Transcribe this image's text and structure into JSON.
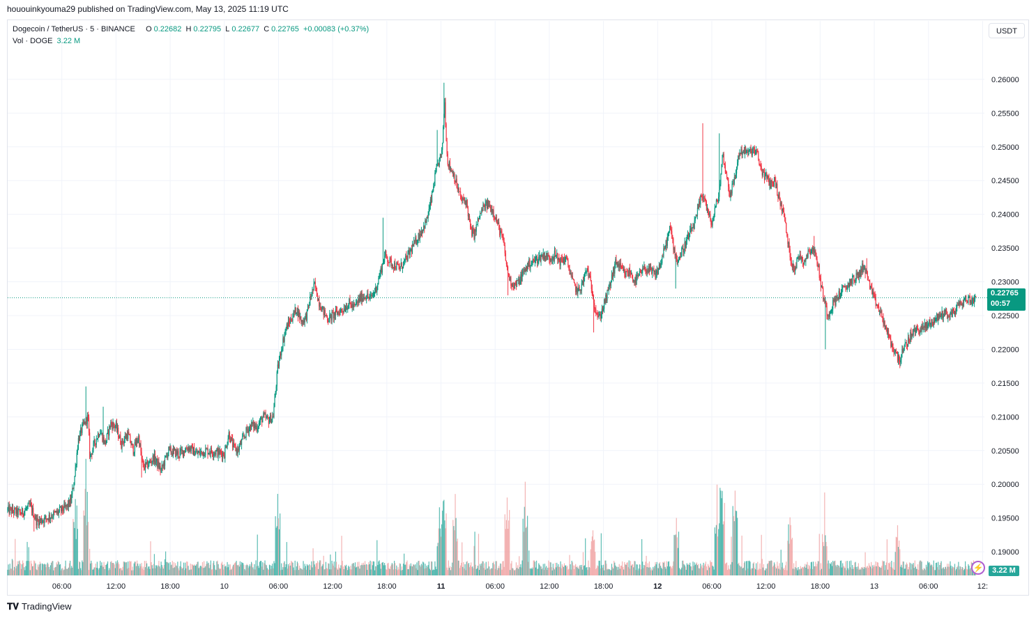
{
  "header": {
    "published_by": "hououinkyouma29 published on TradingView.com, May 13, 2025 11:19 UTC"
  },
  "legend": {
    "symbol": "Dogecoin / TetherUS · 5 · BINANCE",
    "o_label": "O",
    "o_value": "0.22682",
    "h_label": "H",
    "h_value": "0.22795",
    "l_label": "L",
    "l_value": "0.22677",
    "c_label": "C",
    "c_value": "0.22765",
    "change": "+0.00083 (+0.37%)",
    "vol_label": "Vol · DOGE",
    "vol_value": "3.22 M"
  },
  "currency_button": "USDT",
  "last_price_tag": {
    "price": "0.22765",
    "countdown": "00:57"
  },
  "volume_tag": "3.22 M",
  "footer_logo": "TradingView",
  "colors": {
    "up": "#089981",
    "down": "#f23645",
    "vol_up": "#26a69a",
    "vol_down": "#ef9a9a",
    "grid": "#f0f3fa"
  },
  "chart_data": {
    "type": "candlestick",
    "y_axis_ticks": [
      "0.26000",
      "0.25500",
      "0.25000",
      "0.24500",
      "0.24000",
      "0.23500",
      "0.23000",
      "0.22500",
      "0.22000",
      "0.21500",
      "0.21000",
      "0.20500",
      "0.20000",
      "0.19500",
      "0.19000"
    ],
    "ylim": [
      0.1865,
      0.2635
    ],
    "x_axis_ticks": [
      {
        "label": "06:00",
        "t": 6
      },
      {
        "label": "12:00",
        "t": 12
      },
      {
        "label": "18:00",
        "t": 18
      },
      {
        "label": "10",
        "t": 24,
        "bold": false
      },
      {
        "label": "06:00",
        "t": 30
      },
      {
        "label": "12:00",
        "t": 36
      },
      {
        "label": "18:00",
        "t": 42
      },
      {
        "label": "11",
        "t": 48,
        "bold": true
      },
      {
        "label": "06:00",
        "t": 54
      },
      {
        "label": "12:00",
        "t": 60
      },
      {
        "label": "18:00",
        "t": 66
      },
      {
        "label": "12",
        "t": 72,
        "bold": true
      },
      {
        "label": "06:00",
        "t": 78
      },
      {
        "label": "12:00",
        "t": 84
      },
      {
        "label": "18:00",
        "t": 90
      },
      {
        "label": "13",
        "t": 96,
        "bold": false
      },
      {
        "label": "06:00",
        "t": 102
      },
      {
        "label": "12:",
        "t": 108
      }
    ],
    "xlim_hours": [
      0.0,
      108.2
    ],
    "price_path": [
      [
        0.0,
        0.1962
      ],
      [
        1.5,
        0.1957
      ],
      [
        2.5,
        0.1968
      ],
      [
        3.2,
        0.1945
      ],
      [
        4.0,
        0.1948
      ],
      [
        5.5,
        0.1958
      ],
      [
        6.5,
        0.1966
      ],
      [
        7.0,
        0.1975
      ],
      [
        7.4,
        0.201
      ],
      [
        7.8,
        0.2065
      ],
      [
        8.3,
        0.2085
      ],
      [
        8.9,
        0.21
      ],
      [
        9.1,
        0.204
      ],
      [
        9.6,
        0.206
      ],
      [
        10.2,
        0.208
      ],
      [
        10.8,
        0.206
      ],
      [
        11.4,
        0.209
      ],
      [
        12.0,
        0.2085
      ],
      [
        12.6,
        0.206
      ],
      [
        13.3,
        0.2075
      ],
      [
        13.9,
        0.205
      ],
      [
        14.5,
        0.207
      ],
      [
        15.0,
        0.2025
      ],
      [
        15.6,
        0.203
      ],
      [
        16.2,
        0.204
      ],
      [
        17.0,
        0.202
      ],
      [
        17.8,
        0.205
      ],
      [
        19.0,
        0.2045
      ],
      [
        20.0,
        0.2055
      ],
      [
        21.0,
        0.2045
      ],
      [
        22.0,
        0.205
      ],
      [
        23.0,
        0.2048
      ],
      [
        24.0,
        0.2045
      ],
      [
        24.5,
        0.2075
      ],
      [
        25.0,
        0.2055
      ],
      [
        25.5,
        0.205
      ],
      [
        26.0,
        0.2065
      ],
      [
        26.5,
        0.208
      ],
      [
        27.0,
        0.2088
      ],
      [
        27.6,
        0.2085
      ],
      [
        28.3,
        0.21
      ],
      [
        28.9,
        0.2095
      ],
      [
        29.4,
        0.21
      ],
      [
        29.9,
        0.217
      ],
      [
        30.3,
        0.22
      ],
      [
        30.8,
        0.223
      ],
      [
        31.4,
        0.2245
      ],
      [
        32.0,
        0.226
      ],
      [
        32.6,
        0.224
      ],
      [
        33.1,
        0.225
      ],
      [
        33.6,
        0.228
      ],
      [
        34.0,
        0.2295
      ],
      [
        34.5,
        0.227
      ],
      [
        35.0,
        0.2255
      ],
      [
        35.5,
        0.2245
      ],
      [
        36.0,
        0.225
      ],
      [
        36.6,
        0.2255
      ],
      [
        37.2,
        0.226
      ],
      [
        37.8,
        0.2268
      ],
      [
        38.4,
        0.2262
      ],
      [
        39.0,
        0.2275
      ],
      [
        39.6,
        0.228
      ],
      [
        40.2,
        0.2275
      ],
      [
        40.8,
        0.229
      ],
      [
        41.4,
        0.232
      ],
      [
        41.8,
        0.234
      ],
      [
        42.3,
        0.233
      ],
      [
        42.8,
        0.2325
      ],
      [
        43.4,
        0.232
      ],
      [
        44.0,
        0.233
      ],
      [
        44.6,
        0.2345
      ],
      [
        45.2,
        0.236
      ],
      [
        45.8,
        0.2375
      ],
      [
        46.4,
        0.239
      ],
      [
        46.9,
        0.242
      ],
      [
        47.4,
        0.246
      ],
      [
        47.8,
        0.248
      ],
      [
        48.1,
        0.249
      ],
      [
        48.4,
        0.257
      ],
      [
        48.7,
        0.248
      ],
      [
        49.0,
        0.247
      ],
      [
        49.4,
        0.246
      ],
      [
        49.8,
        0.244
      ],
      [
        50.3,
        0.242
      ],
      [
        50.8,
        0.242
      ],
      [
        51.3,
        0.2375
      ],
      [
        51.7,
        0.237
      ],
      [
        52.2,
        0.2395
      ],
      [
        52.7,
        0.241
      ],
      [
        53.2,
        0.2415
      ],
      [
        53.8,
        0.2405
      ],
      [
        54.4,
        0.238
      ],
      [
        54.9,
        0.236
      ],
      [
        55.3,
        0.232
      ],
      [
        55.7,
        0.23
      ],
      [
        56.2,
        0.2295
      ],
      [
        56.6,
        0.23
      ],
      [
        57.0,
        0.231
      ],
      [
        57.6,
        0.2325
      ],
      [
        58.2,
        0.233
      ],
      [
        58.8,
        0.2335
      ],
      [
        59.4,
        0.234
      ],
      [
        60.0,
        0.2335
      ],
      [
        60.6,
        0.234
      ],
      [
        61.2,
        0.233
      ],
      [
        61.8,
        0.2335
      ],
      [
        62.2,
        0.232
      ],
      [
        62.7,
        0.2295
      ],
      [
        63.2,
        0.2285
      ],
      [
        63.6,
        0.2295
      ],
      [
        64.2,
        0.232
      ],
      [
        64.7,
        0.229
      ],
      [
        65.1,
        0.226
      ],
      [
        65.5,
        0.2245
      ],
      [
        65.9,
        0.226
      ],
      [
        66.4,
        0.228
      ],
      [
        66.9,
        0.2305
      ],
      [
        67.4,
        0.233
      ],
      [
        67.9,
        0.232
      ],
      [
        68.4,
        0.231
      ],
      [
        68.9,
        0.2315
      ],
      [
        69.5,
        0.23
      ],
      [
        70.0,
        0.231
      ],
      [
        70.6,
        0.232
      ],
      [
        71.2,
        0.2315
      ],
      [
        71.8,
        0.231
      ],
      [
        72.4,
        0.233
      ],
      [
        72.9,
        0.2355
      ],
      [
        73.4,
        0.238
      ],
      [
        73.8,
        0.235
      ],
      [
        74.2,
        0.233
      ],
      [
        74.7,
        0.2345
      ],
      [
        75.2,
        0.236
      ],
      [
        75.7,
        0.2375
      ],
      [
        76.2,
        0.239
      ],
      [
        76.7,
        0.242
      ],
      [
        77.1,
        0.243
      ],
      [
        77.6,
        0.24
      ],
      [
        78.0,
        0.2385
      ],
      [
        78.4,
        0.241
      ],
      [
        78.8,
        0.243
      ],
      [
        79.2,
        0.249
      ],
      [
        79.6,
        0.246
      ],
      [
        80.0,
        0.243
      ],
      [
        80.5,
        0.245
      ],
      [
        81.0,
        0.249
      ],
      [
        81.5,
        0.2495
      ],
      [
        82.0,
        0.249
      ],
      [
        82.5,
        0.2495
      ],
      [
        83.0,
        0.249
      ],
      [
        83.5,
        0.2465
      ],
      [
        84.0,
        0.2455
      ],
      [
        84.5,
        0.2445
      ],
      [
        85.0,
        0.245
      ],
      [
        85.5,
        0.242
      ],
      [
        86.0,
        0.24
      ],
      [
        86.4,
        0.236
      ],
      [
        86.8,
        0.233
      ],
      [
        87.2,
        0.232
      ],
      [
        87.7,
        0.234
      ],
      [
        88.2,
        0.233
      ],
      [
        88.7,
        0.2345
      ],
      [
        89.2,
        0.235
      ],
      [
        89.7,
        0.233
      ],
      [
        90.1,
        0.2295
      ],
      [
        90.5,
        0.227
      ],
      [
        90.9,
        0.225
      ],
      [
        91.3,
        0.2265
      ],
      [
        91.8,
        0.2275
      ],
      [
        92.3,
        0.2285
      ],
      [
        92.8,
        0.229
      ],
      [
        93.3,
        0.23
      ],
      [
        93.8,
        0.2305
      ],
      [
        94.3,
        0.231
      ],
      [
        94.8,
        0.2325
      ],
      [
        95.3,
        0.2305
      ],
      [
        95.8,
        0.228
      ],
      [
        96.3,
        0.2265
      ],
      [
        96.8,
        0.225
      ],
      [
        97.3,
        0.223
      ],
      [
        97.8,
        0.221
      ],
      [
        98.3,
        0.2195
      ],
      [
        98.8,
        0.2185
      ],
      [
        99.3,
        0.22
      ],
      [
        99.8,
        0.2215
      ],
      [
        100.3,
        0.2225
      ],
      [
        100.8,
        0.223
      ],
      [
        101.3,
        0.223
      ],
      [
        101.8,
        0.2235
      ],
      [
        102.3,
        0.224
      ],
      [
        102.8,
        0.2245
      ],
      [
        103.3,
        0.225
      ],
      [
        103.8,
        0.2255
      ],
      [
        104.3,
        0.225
      ],
      [
        104.8,
        0.2255
      ],
      [
        105.3,
        0.2265
      ],
      [
        105.8,
        0.227
      ],
      [
        106.3,
        0.2275
      ],
      [
        106.8,
        0.2272
      ],
      [
        107.3,
        0.2277
      ]
    ],
    "spikes": [
      {
        "t": 8.7,
        "high": 0.2145
      },
      {
        "t": 10.6,
        "high": 0.2115
      },
      {
        "t": 48.35,
        "high": 0.2595
      },
      {
        "t": 47.6,
        "high": 0.2525
      },
      {
        "t": 77.0,
        "high": 0.2535
      },
      {
        "t": 78.8,
        "high": 0.252
      },
      {
        "t": 64.9,
        "low": 0.2225
      },
      {
        "t": 90.6,
        "low": 0.22
      },
      {
        "t": 98.8,
        "low": 0.2172
      },
      {
        "t": 55.4,
        "low": 0.228
      },
      {
        "t": 74.0,
        "low": 0.229
      },
      {
        "t": 33.9,
        "high": 0.2305
      },
      {
        "t": 14.8,
        "low": 0.201
      },
      {
        "t": 2.9,
        "low": 0.193
      },
      {
        "t": 41.6,
        "high": 0.2395
      },
      {
        "t": 86.2,
        "high": 0.239
      },
      {
        "t": 95.2,
        "high": 0.2335
      },
      {
        "t": 89.3,
        "high": 0.2368
      }
    ],
    "volume_peaks": [
      {
        "t": 7.5,
        "level": 0.65
      },
      {
        "t": 8.7,
        "level": 1.0
      },
      {
        "t": 29.9,
        "level": 0.75
      },
      {
        "t": 48.3,
        "level": 0.9
      },
      {
        "t": 47.8,
        "level": 0.6
      },
      {
        "t": 55.3,
        "level": 0.75
      },
      {
        "t": 49.6,
        "level": 0.68
      },
      {
        "t": 79.2,
        "level": 1.0
      },
      {
        "t": 80.6,
        "level": 0.9
      },
      {
        "t": 78.6,
        "level": 0.75
      },
      {
        "t": 86.7,
        "level": 0.65
      },
      {
        "t": 90.5,
        "level": 0.55
      },
      {
        "t": 98.6,
        "level": 0.45
      },
      {
        "t": 64.8,
        "level": 0.45
      },
      {
        "t": 57.3,
        "level": 0.8
      },
      {
        "t": 74.1,
        "level": 0.5
      }
    ],
    "volume_ylim": [
      0,
      3.2
    ],
    "last_price": 0.22765,
    "last_volume": "3.22 M"
  }
}
